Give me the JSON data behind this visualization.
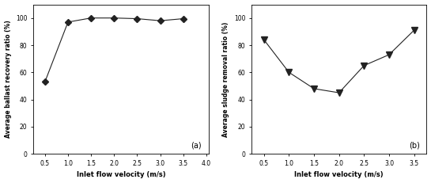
{
  "chart_a": {
    "x": [
      0.5,
      1.0,
      1.5,
      2.0,
      2.5,
      3.0,
      3.5
    ],
    "y": [
      53,
      97,
      100,
      100,
      99.5,
      98,
      99.5
    ],
    "xlabel": "Inlet flow velocity (m/s)",
    "ylabel": "Average ballast recovery ratio (%)",
    "xlim": [
      0.25,
      4.05
    ],
    "ylim": [
      0,
      110
    ],
    "yticks": [
      0,
      20,
      40,
      60,
      80,
      100
    ],
    "xticks": [
      0.5,
      1.0,
      1.5,
      2.0,
      2.5,
      3.0,
      3.5,
      4.0
    ],
    "label": "(a)",
    "marker": "D",
    "markersize": 4,
    "color": "#222222"
  },
  "chart_b": {
    "x": [
      0.5,
      1.0,
      1.5,
      2.0,
      2.5,
      3.0,
      3.5
    ],
    "y": [
      84,
      60,
      48,
      45,
      65,
      73,
      91
    ],
    "xlabel": "Inlet flow velocity (m/s)",
    "ylabel": "Average sludge removal ratio (%)",
    "xlim": [
      0.25,
      3.75
    ],
    "ylim": [
      0,
      110
    ],
    "yticks": [
      0,
      20,
      40,
      60,
      80,
      100
    ],
    "xticks": [
      0.5,
      1.0,
      1.5,
      2.0,
      2.5,
      3.0,
      3.5
    ],
    "label": "(b)",
    "marker": "v",
    "markersize": 6,
    "color": "#222222"
  },
  "figsize": [
    5.45,
    2.31
  ],
  "dpi": 100
}
